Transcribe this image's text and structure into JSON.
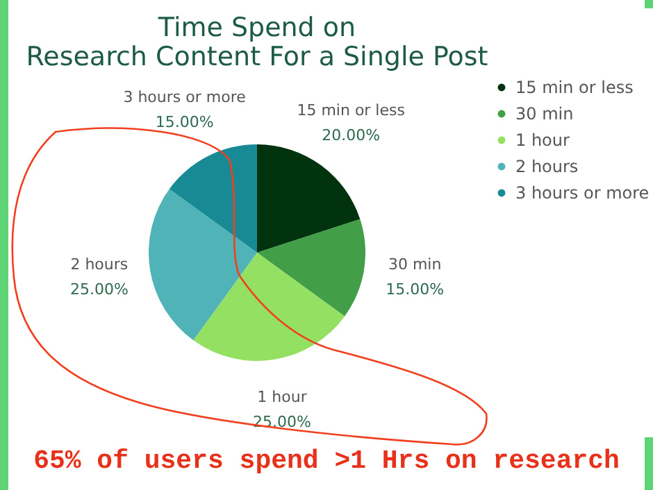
{
  "chart_data": {
    "type": "pie",
    "title": [
      "Time Spend on",
      "Research Content For a Single Post"
    ],
    "categories": [
      "15 min or less",
      "30 min",
      "1 hour",
      "2 hours",
      "3 hours or more"
    ],
    "values": [
      20,
      15,
      25,
      25,
      15
    ],
    "value_labels": [
      "20.00%",
      "15.00%",
      "25.00%",
      "25.00%",
      "15.00%"
    ],
    "colors": [
      "#02330f",
      "#429e47",
      "#94e062",
      "#50b3b8",
      "#188a95"
    ],
    "legend": "right",
    "annotations": [
      "65% of users spend >1 Hrs on research"
    ]
  }
}
